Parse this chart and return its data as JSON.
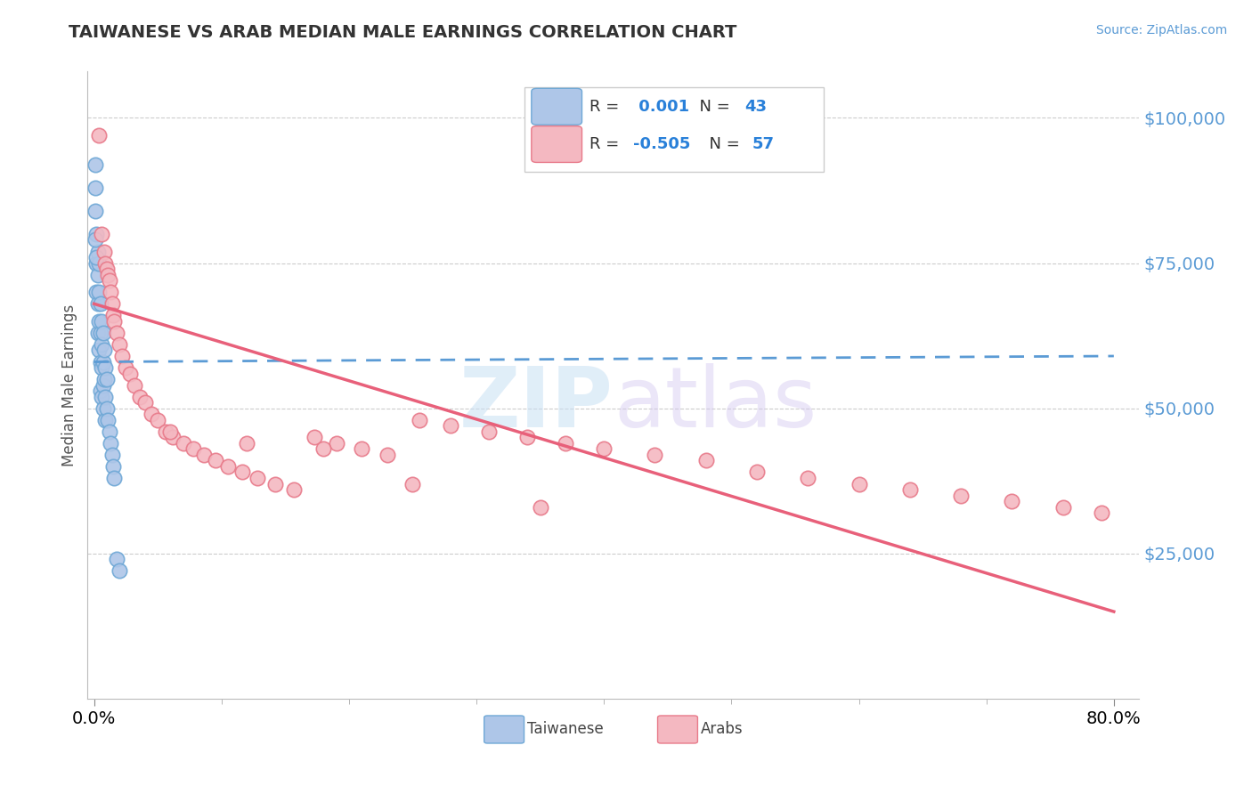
{
  "title": "TAIWANESE VS ARAB MEDIAN MALE EARNINGS CORRELATION CHART",
  "source": "Source: ZipAtlas.com",
  "ylabel": "Median Male Earnings",
  "yticklabels": [
    "$25,000",
    "$50,000",
    "$75,000",
    "$100,000"
  ],
  "ytick_values": [
    25000,
    50000,
    75000,
    100000
  ],
  "ymin": 0,
  "ymax": 108000,
  "xmin": -0.005,
  "xmax": 0.82,
  "taiwanese_color": "#aec6e8",
  "arab_color": "#f4b8c1",
  "taiwanese_edge": "#6fa8d6",
  "arab_edge": "#e87a8a",
  "trend_taiwanese_color": "#5b9bd5",
  "trend_arab_color": "#e8607a",
  "background_color": "#ffffff",
  "legend_r_taiwanese": " 0.001",
  "legend_n_taiwanese": "43",
  "legend_r_arab": "-0.505",
  "legend_n_arab": "57",
  "tw_x": [
    0.001,
    0.001,
    0.002,
    0.002,
    0.002,
    0.003,
    0.003,
    0.003,
    0.003,
    0.004,
    0.004,
    0.004,
    0.004,
    0.005,
    0.005,
    0.005,
    0.005,
    0.006,
    0.006,
    0.006,
    0.006,
    0.007,
    0.007,
    0.007,
    0.007,
    0.008,
    0.008,
    0.009,
    0.009,
    0.009,
    0.01,
    0.01,
    0.011,
    0.012,
    0.013,
    0.014,
    0.015,
    0.016,
    0.018,
    0.02,
    0.001,
    0.001,
    0.002
  ],
  "tw_y": [
    92000,
    84000,
    80000,
    75000,
    70000,
    77000,
    73000,
    68000,
    63000,
    75000,
    70000,
    65000,
    60000,
    68000,
    63000,
    58000,
    53000,
    65000,
    61000,
    57000,
    52000,
    63000,
    58000,
    54000,
    50000,
    60000,
    55000,
    57000,
    52000,
    48000,
    55000,
    50000,
    48000,
    46000,
    44000,
    42000,
    40000,
    38000,
    24000,
    22000,
    88000,
    79000,
    76000
  ],
  "arab_x": [
    0.004,
    0.006,
    0.008,
    0.009,
    0.01,
    0.011,
    0.012,
    0.013,
    0.014,
    0.015,
    0.016,
    0.018,
    0.02,
    0.022,
    0.025,
    0.028,
    0.032,
    0.036,
    0.04,
    0.045,
    0.05,
    0.056,
    0.062,
    0.07,
    0.078,
    0.086,
    0.095,
    0.105,
    0.116,
    0.128,
    0.142,
    0.157,
    0.173,
    0.19,
    0.21,
    0.23,
    0.255,
    0.28,
    0.31,
    0.34,
    0.37,
    0.4,
    0.44,
    0.48,
    0.52,
    0.56,
    0.6,
    0.64,
    0.68,
    0.72,
    0.76,
    0.79,
    0.06,
    0.12,
    0.18,
    0.25,
    0.35
  ],
  "arab_y": [
    97000,
    80000,
    77000,
    75000,
    74000,
    73000,
    72000,
    70000,
    68000,
    66000,
    65000,
    63000,
    61000,
    59000,
    57000,
    56000,
    54000,
    52000,
    51000,
    49000,
    48000,
    46000,
    45000,
    44000,
    43000,
    42000,
    41000,
    40000,
    39000,
    38000,
    37000,
    36000,
    45000,
    44000,
    43000,
    42000,
    48000,
    47000,
    46000,
    45000,
    44000,
    43000,
    42000,
    41000,
    39000,
    38000,
    37000,
    36000,
    35000,
    34000,
    33000,
    32000,
    46000,
    44000,
    43000,
    37000,
    33000
  ],
  "tw_trend_x": [
    0.0,
    0.8
  ],
  "tw_trend_y": [
    58000,
    59000
  ],
  "arab_trend_x": [
    0.0,
    0.8
  ],
  "arab_trend_y": [
    68000,
    15000
  ]
}
